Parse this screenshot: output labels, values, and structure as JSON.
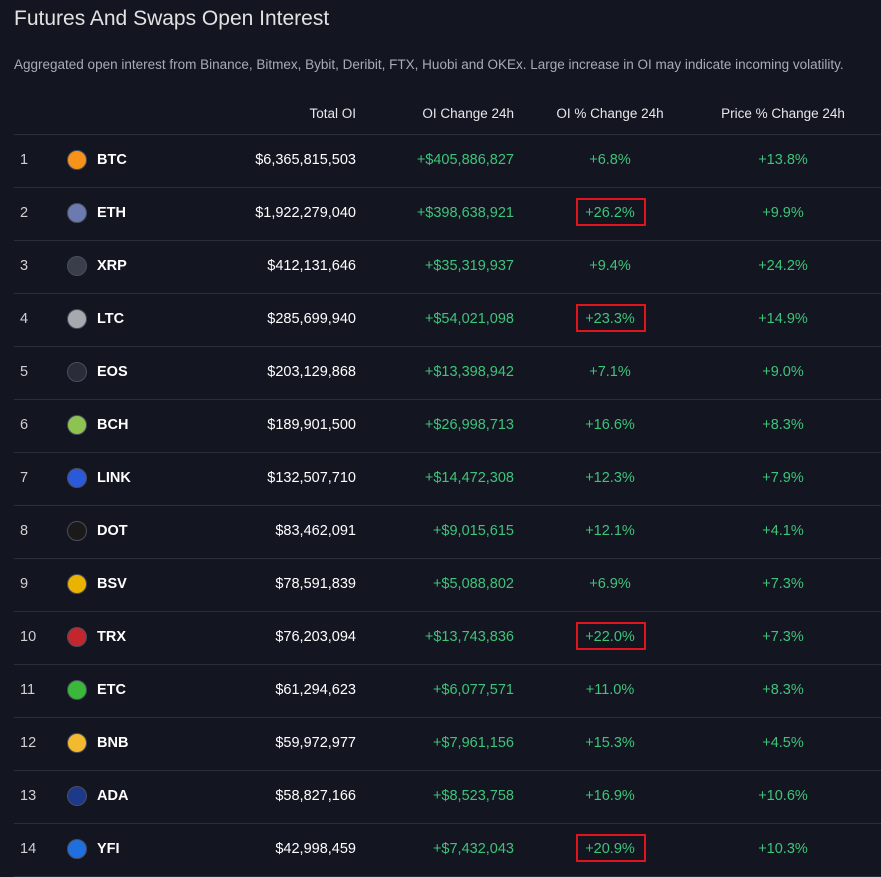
{
  "header": {
    "title": "Futures And Swaps Open Interest",
    "subtitle": "Aggregated open interest from Binance, Bitmex, Bybit, Deribit, FTX, Huobi and OKEx. Large increase in OI may indicate incoming volatility."
  },
  "table": {
    "columns": [
      "Total OI",
      "OI Change 24h",
      "OI % Change 24h",
      "Price % Change 24h"
    ],
    "rows": [
      {
        "rank": 1,
        "symbol": "BTC",
        "total_oi": "$6,365,815,503",
        "oi_change": "+$405,886,827",
        "oi_pct": "+6.8%",
        "price_pct": "+13.8%",
        "highlight": false
      },
      {
        "rank": 2,
        "symbol": "ETH",
        "total_oi": "$1,922,279,040",
        "oi_change": "+$398,638,921",
        "oi_pct": "+26.2%",
        "price_pct": "+9.9%",
        "highlight": true
      },
      {
        "rank": 3,
        "symbol": "XRP",
        "total_oi": "$412,131,646",
        "oi_change": "+$35,319,937",
        "oi_pct": "+9.4%",
        "price_pct": "+24.2%",
        "highlight": false
      },
      {
        "rank": 4,
        "symbol": "LTC",
        "total_oi": "$285,699,940",
        "oi_change": "+$54,021,098",
        "oi_pct": "+23.3%",
        "price_pct": "+14.9%",
        "highlight": true
      },
      {
        "rank": 5,
        "symbol": "EOS",
        "total_oi": "$203,129,868",
        "oi_change": "+$13,398,942",
        "oi_pct": "+7.1%",
        "price_pct": "+9.0%",
        "highlight": false
      },
      {
        "rank": 6,
        "symbol": "BCH",
        "total_oi": "$189,901,500",
        "oi_change": "+$26,998,713",
        "oi_pct": "+16.6%",
        "price_pct": "+8.3%",
        "highlight": false
      },
      {
        "rank": 7,
        "symbol": "LINK",
        "total_oi": "$132,507,710",
        "oi_change": "+$14,472,308",
        "oi_pct": "+12.3%",
        "price_pct": "+7.9%",
        "highlight": false
      },
      {
        "rank": 8,
        "symbol": "DOT",
        "total_oi": "$83,462,091",
        "oi_change": "+$9,015,615",
        "oi_pct": "+12.1%",
        "price_pct": "+4.1%",
        "highlight": false
      },
      {
        "rank": 9,
        "symbol": "BSV",
        "total_oi": "$78,591,839",
        "oi_change": "+$5,088,802",
        "oi_pct": "+6.9%",
        "price_pct": "+7.3%",
        "highlight": false
      },
      {
        "rank": 10,
        "symbol": "TRX",
        "total_oi": "$76,203,094",
        "oi_change": "+$13,743,836",
        "oi_pct": "+22.0%",
        "price_pct": "+7.3%",
        "highlight": true
      },
      {
        "rank": 11,
        "symbol": "ETC",
        "total_oi": "$61,294,623",
        "oi_change": "+$6,077,571",
        "oi_pct": "+11.0%",
        "price_pct": "+8.3%",
        "highlight": false
      },
      {
        "rank": 12,
        "symbol": "BNB",
        "total_oi": "$59,972,977",
        "oi_change": "+$7,961,156",
        "oi_pct": "+15.3%",
        "price_pct": "+4.5%",
        "highlight": false
      },
      {
        "rank": 13,
        "symbol": "ADA",
        "total_oi": "$58,827,166",
        "oi_change": "+$8,523,758",
        "oi_pct": "+16.9%",
        "price_pct": "+10.6%",
        "highlight": false
      },
      {
        "rank": 14,
        "symbol": "YFI",
        "total_oi": "$42,998,459",
        "oi_change": "+$7,432,043",
        "oi_pct": "+20.9%",
        "price_pct": "+10.3%",
        "highlight": true
      }
    ]
  }
}
